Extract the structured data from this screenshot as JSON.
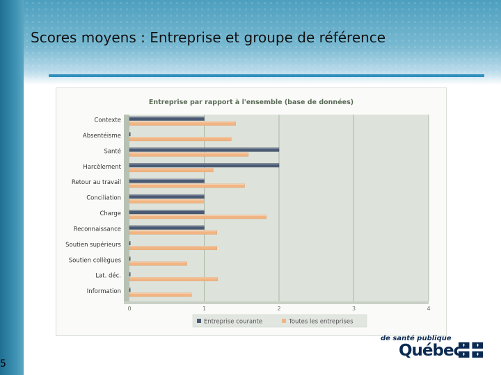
{
  "slide": {
    "title": "Scores moyens : Entreprise et groupe de référence",
    "page_number": "5"
  },
  "logo": {
    "line1": "de santé publique",
    "line2": "Québec"
  },
  "colors": {
    "series_current": "#4a5a74",
    "series_all": "#f1b583",
    "plot_bg": "#dde3db",
    "gridline": "#a9b8a3",
    "accent_rule": "#2f8fbd"
  },
  "chart_data": {
    "type": "bar",
    "orientation": "horizontal",
    "title": "Entreprise par rapport à l'ensemble (base de données)",
    "categories": [
      "Contexte",
      "Absentéisme",
      "Santé",
      "Harcèlement",
      "Retour au travail",
      "Conciliation",
      "Charge",
      "Reconnaissance",
      "Soutien supérieurs",
      "Soutien collègues",
      "Lat. déc.",
      "Information"
    ],
    "series": [
      {
        "name": "Entreprise courante",
        "color": "#4a5a74",
        "values": [
          1,
          0,
          2,
          2,
          1,
          1,
          1,
          1,
          0,
          0,
          0,
          0
        ]
      },
      {
        "name": "Toutes les entreprises",
        "color": "#f1b583",
        "values": [
          1.42,
          1.36,
          1.59,
          1.12,
          1.54,
          0.99,
          1.83,
          1.17,
          1.17,
          0.77,
          1.18,
          0.83
        ]
      }
    ],
    "xlim": [
      0,
      4
    ],
    "xticks": [
      "0",
      "1",
      "2",
      "3",
      "4"
    ],
    "grid": true,
    "legend_position": "bottom"
  }
}
